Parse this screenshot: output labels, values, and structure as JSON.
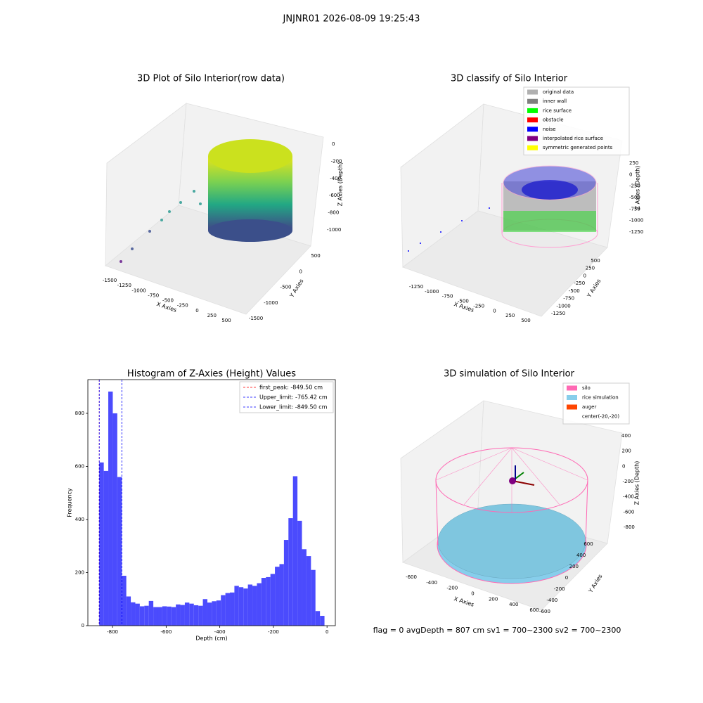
{
  "suptitle": "JNJNR01 2026-08-09 19:25:43",
  "footer": "flag = 0    avgDepth = 807 cm  sv1 = 700~2300  sv2 = 700~2300",
  "chart_data": [
    {
      "type": "scatter3d",
      "title": "3D Plot of Silo Interior(row data)",
      "xlabel": "X Axies",
      "ylabel": "Y Axies",
      "zlabel": "Z Axies (Depth)",
      "xlim": [
        -1500,
        500
      ],
      "xticks": [
        -1500,
        -1250,
        -1000,
        -750,
        -500,
        -250,
        0,
        250,
        500
      ],
      "ylim": [
        -1500,
        500
      ],
      "yticks": [
        -1500,
        -1000,
        -500,
        0,
        500
      ],
      "zlim": [
        -1000,
        0
      ],
      "zticks": [
        -1000,
        -800,
        -600,
        -400,
        -200,
        0
      ]
    },
    {
      "type": "scatter3d",
      "title": "3D classify of Silo Interior",
      "xlabel": "X Axies",
      "ylabel": "Y Axies",
      "zlabel": "Z Axies (Depth)",
      "xlim": [
        -1250,
        500
      ],
      "xticks": [
        -1250,
        -1000,
        -750,
        -500,
        -250,
        0,
        250,
        500
      ],
      "ylim": [
        -1250,
        500
      ],
      "yticks": [
        -1250,
        -1000,
        -750,
        -500,
        -250,
        0,
        250,
        500
      ],
      "zlim": [
        -1250,
        250
      ],
      "zticks": [
        -1250,
        -1000,
        -750,
        -500,
        -250,
        0,
        250
      ],
      "legend": [
        {
          "name": "original data",
          "color": "#b0b0b0"
        },
        {
          "name": "inner wall",
          "color": "#808080"
        },
        {
          "name": "rice surface",
          "color": "#00ff00"
        },
        {
          "name": "obstacle",
          "color": "#ff0000"
        },
        {
          "name": "noise",
          "color": "#0000ff"
        },
        {
          "name": "interpolated rice surface",
          "color": "#800080"
        },
        {
          "name": "symmetric generated points",
          "color": "#ffff00"
        }
      ]
    },
    {
      "type": "histogram",
      "title": "Histogram of Z-Axies (Height) Values",
      "xlabel": "Depth (cm)",
      "ylabel": "Frequency",
      "color": "#4b4bfd",
      "bins": [
        -849.5,
        -832.7,
        -815.9,
        -799.1,
        -782.3,
        -765.5,
        -748.7,
        -731.9,
        -715.1,
        -698.3,
        -681.5,
        -664.7,
        -647.9,
        -631.1,
        -614.3,
        -597.5,
        -580.7,
        -563.9,
        -547.1,
        -530.3,
        -513.5,
        -496.7,
        -479.9,
        -463.1,
        -446.3,
        -429.5,
        -412.7,
        -395.9,
        -379.1,
        -362.3,
        -345.5,
        -328.7,
        -311.9,
        -295.1,
        -278.3,
        -261.5,
        -244.7,
        -227.9,
        -211.1,
        -194.3,
        -177.5,
        -160.7,
        -143.9,
        -127.1,
        -110.3,
        -93.5,
        -76.7,
        -59.9,
        -43.1,
        -26.3,
        -9.5
      ],
      "values": [
        615,
        583,
        882,
        800,
        560,
        188,
        110,
        88,
        83,
        73,
        75,
        93,
        70,
        70,
        73,
        72,
        70,
        80,
        78,
        87,
        83,
        77,
        75,
        100,
        87,
        92,
        95,
        115,
        123,
        125,
        150,
        145,
        140,
        155,
        150,
        160,
        180,
        183,
        195,
        222,
        232,
        323,
        405,
        563,
        395,
        288,
        262,
        210,
        55,
        37
      ],
      "xlim": [
        -892,
        31
      ],
      "xticks": [
        -800,
        -600,
        -400,
        -200,
        0
      ],
      "ylim": [
        0,
        927
      ],
      "yticks": [
        0,
        200,
        400,
        600,
        800
      ],
      "vlines": [
        {
          "name": "first_peak: -849.50 cm",
          "value": -849.5,
          "color": "#ff0000"
        },
        {
          "name": "Upper_limit: -765.42 cm",
          "value": -765.42,
          "color": "#0000ff"
        },
        {
          "name": "Lower_limit: -849.50 cm",
          "value": -849.5,
          "color": "#0000ff"
        }
      ]
    },
    {
      "type": "scatter3d",
      "title": "3D simulation of Silo Interior",
      "xlabel": "X Axies",
      "ylabel": "Y Axies",
      "zlabel": "Z Axies (Depth)",
      "xlim": [
        -600,
        600
      ],
      "xticks": [
        -600,
        -400,
        -200,
        0,
        200,
        400,
        600
      ],
      "ylim": [
        -600,
        600
      ],
      "yticks": [
        -600,
        -400,
        -200,
        0,
        200,
        400,
        600
      ],
      "zlim": [
        -800,
        400
      ],
      "zticks": [
        -800,
        -600,
        -400,
        -200,
        0,
        200,
        400
      ],
      "legend": [
        {
          "name": "silo",
          "color": "#ff69b4"
        },
        {
          "name": "rice simulation",
          "color": "#87ceeb"
        },
        {
          "name": "auger",
          "color": "#ff4500"
        },
        {
          "name": "center(-20,-20)",
          "color": "#ffffff"
        }
      ]
    }
  ]
}
